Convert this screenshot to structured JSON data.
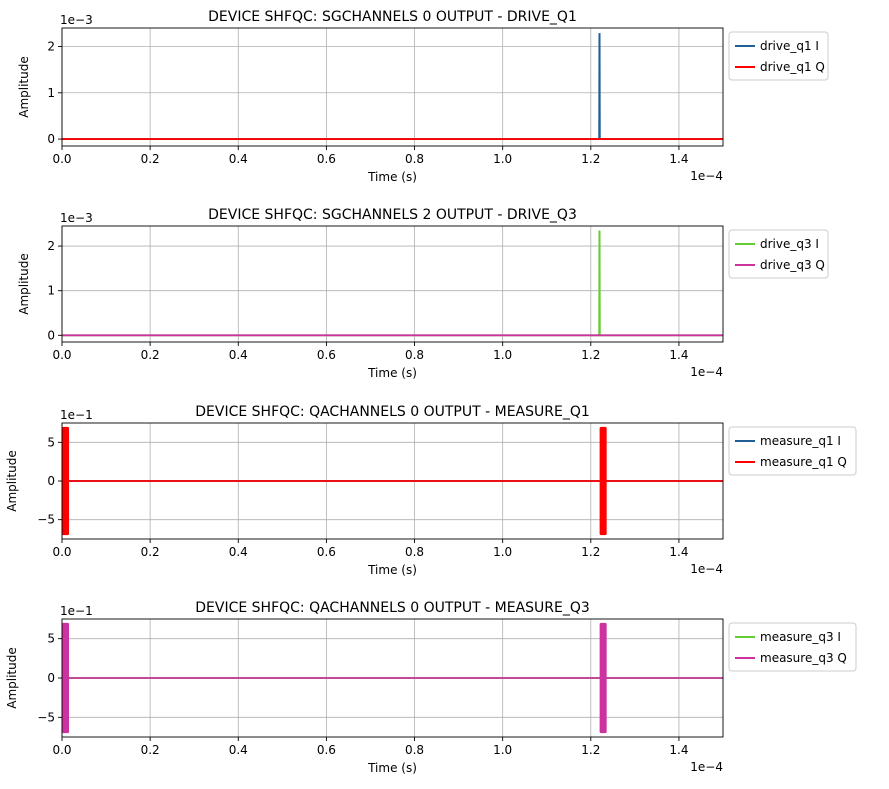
{
  "chart_data": [
    {
      "type": "line",
      "title": "DEVICE SHFQC: SGCHANNELS 0 OUTPUT - DRIVE_Q1",
      "xlabel": "Time (s)",
      "ylabel": "Amplitude",
      "x_multiplier_label": "1e−4",
      "y_multiplier_label": "1e−3",
      "xlim": [
        0,
        1.5
      ],
      "ylim": [
        -0.15,
        2.4
      ],
      "x_ticks": [
        "0.0",
        "0.2",
        "0.4",
        "0.6",
        "0.8",
        "1.0",
        "1.2",
        "1.4"
      ],
      "y_ticks": [
        "0",
        "1",
        "2"
      ],
      "x_tick_values": [
        0,
        0.2,
        0.4,
        0.6,
        0.8,
        1.0,
        1.2,
        1.4
      ],
      "y_tick_values": [
        0,
        1,
        2
      ],
      "grid": true,
      "legend_position": "outside-right",
      "series": [
        {
          "name": "drive_q1 I",
          "color": "#1f5f95",
          "kind": "spike",
          "values": [
            [
              0,
              0
            ],
            [
              1.219,
              0
            ],
            [
              1.2195,
              2.27
            ],
            [
              1.22,
              2.27
            ],
            [
              1.2205,
              0
            ],
            [
              1.5,
              0
            ]
          ]
        },
        {
          "name": "drive_q1 Q",
          "color": "#ff0000",
          "kind": "line",
          "values": [
            [
              0,
              0
            ],
            [
              1.5,
              0
            ]
          ]
        }
      ]
    },
    {
      "type": "line",
      "title": "DEVICE SHFQC: SGCHANNELS 2 OUTPUT - DRIVE_Q3",
      "xlabel": "Time (s)",
      "ylabel": "Amplitude",
      "x_multiplier_label": "1e−4",
      "y_multiplier_label": "1e−3",
      "xlim": [
        0,
        1.5
      ],
      "ylim": [
        -0.15,
        2.45
      ],
      "x_ticks": [
        "0.0",
        "0.2",
        "0.4",
        "0.6",
        "0.8",
        "1.0",
        "1.2",
        "1.4"
      ],
      "y_ticks": [
        "0",
        "1",
        "2"
      ],
      "x_tick_values": [
        0,
        0.2,
        0.4,
        0.6,
        0.8,
        1.0,
        1.2,
        1.4
      ],
      "y_tick_values": [
        0,
        1,
        2
      ],
      "grid": true,
      "legend_position": "outside-right",
      "series": [
        {
          "name": "drive_q3 I",
          "color": "#66cc33",
          "kind": "spike",
          "values": [
            [
              0,
              0
            ],
            [
              1.219,
              0
            ],
            [
              1.2195,
              2.33
            ],
            [
              1.22,
              2.33
            ],
            [
              1.2205,
              0
            ],
            [
              1.5,
              0
            ]
          ]
        },
        {
          "name": "drive_q3 Q",
          "color": "#cc33a0",
          "kind": "line",
          "values": [
            [
              0,
              0
            ],
            [
              1.5,
              0
            ]
          ]
        }
      ]
    },
    {
      "type": "line",
      "title": "DEVICE SHFQC: QACHANNELS 0 OUTPUT - MEASURE_Q1",
      "xlabel": "Time (s)",
      "ylabel": "Amplitude",
      "x_multiplier_label": "1e−4",
      "y_multiplier_label": "1e−1",
      "xlim": [
        0,
        1.5
      ],
      "ylim": [
        -7.5,
        7.5
      ],
      "x_ticks": [
        "0.0",
        "0.2",
        "0.4",
        "0.6",
        "0.8",
        "1.0",
        "1.2",
        "1.4"
      ],
      "y_ticks": [
        "−5",
        "0",
        "5"
      ],
      "x_tick_values": [
        0,
        0.2,
        0.4,
        0.6,
        0.8,
        1.0,
        1.2,
        1.4
      ],
      "y_tick_values": [
        -5,
        0,
        5
      ],
      "grid": true,
      "legend_position": "outside-right",
      "series": [
        {
          "name": "measure_q1 I",
          "color": "#1f5f95",
          "kind": "line",
          "values": [
            [
              0,
              0
            ],
            [
              1.5,
              0
            ]
          ]
        },
        {
          "name": "measure_q1 Q",
          "color": "#ff0000",
          "kind": "line",
          "values": [
            [
              0,
              0
            ],
            [
              1.5,
              0
            ]
          ],
          "bursts": [
            {
              "x0": 0.0,
              "x1": 0.016,
              "amplitude": 7.0
            },
            {
              "x0": 1.22,
              "x1": 1.236,
              "amplitude": 7.0
            }
          ]
        }
      ]
    },
    {
      "type": "line",
      "title": "DEVICE SHFQC: QACHANNELS 0 OUTPUT - MEASURE_Q3",
      "xlabel": "Time (s)",
      "ylabel": "Amplitude",
      "x_multiplier_label": "1e−4",
      "y_multiplier_label": "1e−1",
      "xlim": [
        0,
        1.5
      ],
      "ylim": [
        -7.5,
        7.5
      ],
      "x_ticks": [
        "0.0",
        "0.2",
        "0.4",
        "0.6",
        "0.8",
        "1.0",
        "1.2",
        "1.4"
      ],
      "y_ticks": [
        "−5",
        "0",
        "5"
      ],
      "x_tick_values": [
        0,
        0.2,
        0.4,
        0.6,
        0.8,
        1.0,
        1.2,
        1.4
      ],
      "y_tick_values": [
        -5,
        0,
        5
      ],
      "grid": true,
      "legend_position": "outside-right",
      "series": [
        {
          "name": "measure_q3 I",
          "color": "#66cc33",
          "kind": "line",
          "values": [
            [
              0,
              0
            ],
            [
              1.5,
              0
            ]
          ]
        },
        {
          "name": "measure_q3 Q",
          "color": "#cc33a0",
          "kind": "line",
          "values": [
            [
              0,
              0
            ],
            [
              1.5,
              0
            ]
          ],
          "bursts": [
            {
              "x0": 0.0,
              "x1": 0.016,
              "amplitude": 7.0
            },
            {
              "x0": 1.22,
              "x1": 1.236,
              "amplitude": 7.0
            }
          ]
        }
      ]
    }
  ]
}
